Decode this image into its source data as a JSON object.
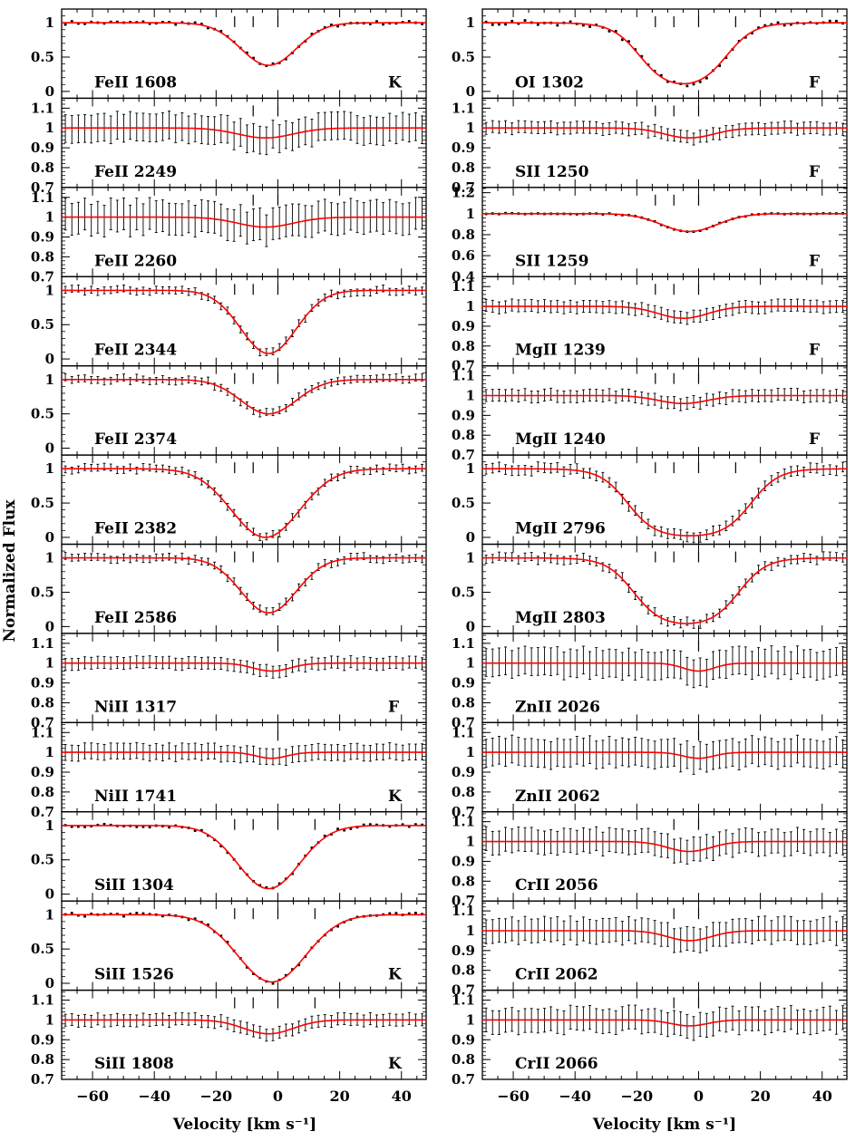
{
  "figure": {
    "ylabel": "Normalized Flux",
    "xlabel": "Velocity [km s⁻¹]"
  },
  "chart_data": {
    "type": "line",
    "description": "Multi-panel absorption line velocity profiles (data points with error bars and red model fit)",
    "xlim": [
      -70,
      48
    ],
    "x_ticks": [
      -60,
      -40,
      -20,
      0,
      20,
      40
    ],
    "xlabel": "Velocity [km s⁻¹]",
    "ylabel": "Normalized Flux",
    "fit_color": "#ff0000",
    "data_color": "#000000",
    "columns": [
      {
        "panels": [
          {
            "ion": "FeII 1608",
            "flag": "K",
            "ylim": [
              -0.1,
              1.2
            ],
            "yticks": [
              "1",
              "0.5",
              "0"
            ],
            "ytick_values": [
              1,
              0.5,
              0
            ],
            "depth": 0.62,
            "center": -3,
            "width": 9,
            "edge_left": -32,
            "edge_right": 10,
            "noise": 0.02,
            "errorbars": false,
            "markers": [
              -14,
              -8,
              0
            ]
          },
          {
            "ion": "FeII 2249",
            "flag": "",
            "ylim": [
              0.7,
              1.15
            ],
            "yticks": [
              "1.1",
              "1",
              "0.9",
              "0.8",
              "0.7"
            ],
            "ytick_values": [
              1.1,
              1,
              0.9,
              0.8,
              0.7
            ],
            "depth": 0.05,
            "center": -4,
            "width": 9,
            "noise": 0.0,
            "errorbars": true,
            "err": 0.07,
            "markers": [
              -8,
              0
            ]
          },
          {
            "ion": "FeII 2260",
            "flag": "",
            "ylim": [
              0.7,
              1.15
            ],
            "yticks": [
              "1.1",
              "1",
              "0.9",
              "0.8",
              "0.7"
            ],
            "ytick_values": [
              1.1,
              1,
              0.9,
              0.8,
              0.7
            ],
            "depth": 0.05,
            "center": -4,
            "width": 9,
            "noise": 0.0,
            "errorbars": true,
            "err": 0.08,
            "markers": [
              -8,
              0
            ]
          },
          {
            "ion": "FeII 2344",
            "flag": "",
            "ylim": [
              -0.1,
              1.2
            ],
            "yticks": [
              "1",
              "0.5",
              "0"
            ],
            "ytick_values": [
              1,
              0.5,
              0
            ],
            "depth": 0.92,
            "center": -3,
            "width": 9,
            "noise": 0.02,
            "errorbars": true,
            "err": 0.05,
            "markers": [
              -14,
              -8,
              0
            ]
          },
          {
            "ion": "FeII 2374",
            "flag": "",
            "ylim": [
              -0.1,
              1.2
            ],
            "yticks": [
              "1",
              "0.5",
              "0"
            ],
            "ytick_values": [
              1,
              0.5,
              0
            ],
            "depth": 0.5,
            "center": -3,
            "width": 9,
            "noise": 0.02,
            "errorbars": true,
            "err": 0.05,
            "markers": [
              -14,
              -8,
              0
            ]
          },
          {
            "ion": "FeII 2382",
            "flag": "",
            "ylim": [
              -0.1,
              1.2
            ],
            "yticks": [
              "1",
              "0.5",
              "0"
            ],
            "ytick_values": [
              1,
              0.5,
              0
            ],
            "depth": 1.0,
            "center": -4,
            "width": 11,
            "noise": 0.02,
            "errorbars": true,
            "err": 0.05,
            "markers": [
              -14,
              -8,
              0
            ]
          },
          {
            "ion": "FeII 2586",
            "flag": "",
            "ylim": [
              -0.1,
              1.2
            ],
            "yticks": [
              "1",
              "0.5",
              "0"
            ],
            "ytick_values": [
              1,
              0.5,
              0
            ],
            "depth": 0.8,
            "center": -3,
            "width": 9,
            "noise": 0.02,
            "errorbars": true,
            "err": 0.05,
            "markers": [
              -14,
              -8,
              0
            ]
          },
          {
            "ion": "NiII 1317",
            "flag": "F",
            "ylim": [
              0.7,
              1.15
            ],
            "yticks": [
              "1.1",
              "1",
              "0.9",
              "0.8",
              "0.7"
            ],
            "ytick_values": [
              1.1,
              1,
              0.9,
              0.8,
              0.7
            ],
            "depth": 0.04,
            "center": -2,
            "width": 6,
            "noise": 0.0,
            "errorbars": true,
            "err": 0.03,
            "markers": [
              0
            ]
          },
          {
            "ion": "NiII 1741",
            "flag": "K",
            "ylim": [
              0.7,
              1.15
            ],
            "yticks": [
              "1.1",
              "1",
              "0.9",
              "0.8",
              "0.7"
            ],
            "ytick_values": [
              1.1,
              1,
              0.9,
              0.8,
              0.7
            ],
            "depth": 0.03,
            "center": -2,
            "width": 5,
            "noise": 0.0,
            "errorbars": true,
            "err": 0.04,
            "markers": [
              0
            ]
          },
          {
            "ion": "SiII 1304",
            "flag": "",
            "ylim": [
              -0.1,
              1.2
            ],
            "yticks": [
              "1",
              "0.5",
              "0"
            ],
            "ytick_values": [
              1,
              0.5,
              0
            ],
            "depth": 0.92,
            "center": -3,
            "width": 10,
            "noise": 0.02,
            "errorbars": false,
            "markers": [
              -14,
              -8,
              0,
              12
            ]
          },
          {
            "ion": "SiII 1526",
            "flag": "K",
            "ylim": [
              -0.1,
              1.2
            ],
            "yticks": [
              "1",
              "0.5",
              "0"
            ],
            "ytick_values": [
              1,
              0.5,
              0
            ],
            "depth": 0.98,
            "center": -2,
            "width": 11,
            "noise": 0.02,
            "errorbars": false,
            "markers": [
              -14,
              -8,
              0,
              12
            ]
          },
          {
            "ion": "SiII 1808",
            "flag": "K",
            "ylim": [
              0.7,
              1.15
            ],
            "yticks": [
              "1.1",
              "1",
              "0.9",
              "0.8",
              "0.7"
            ],
            "ytick_values": [
              1.1,
              1,
              0.9,
              0.8,
              0.7
            ],
            "depth": 0.07,
            "center": -3,
            "width": 8,
            "noise": 0.0,
            "errorbars": true,
            "err": 0.03,
            "markers": [
              -14,
              -8,
              0,
              12
            ]
          }
        ]
      },
      {
        "panels": [
          {
            "ion": "OI 1302",
            "flag": "F",
            "ylim": [
              -0.1,
              1.2
            ],
            "yticks": [
              "1",
              "0.5",
              "0"
            ],
            "ytick_values": [
              1,
              0.5,
              0
            ],
            "depth": 0.97,
            "center": -5,
            "width": 14,
            "noise": 0.03,
            "errorbars": false,
            "markers": [
              -14,
              -8,
              0,
              12
            ],
            "saturated": true
          },
          {
            "ion": "SII 1250",
            "flag": "F",
            "ylim": [
              0.7,
              1.15
            ],
            "yticks": [
              "1.1",
              "1",
              "0.9",
              "0.8",
              "0.7"
            ],
            "ytick_values": [
              1.1,
              1,
              0.9,
              0.8,
              0.7
            ],
            "depth": 0.05,
            "center": -3,
            "width": 8,
            "noise": 0.0,
            "errorbars": true,
            "err": 0.03,
            "markers": [
              -14,
              -8,
              0
            ]
          },
          {
            "ion": "SII 1259",
            "flag": "F",
            "ylim": [
              0.4,
              1.25
            ],
            "yticks": [
              "1.2",
              "1",
              "0.8",
              "0.6",
              "0.4"
            ],
            "ytick_values": [
              1.2,
              1,
              0.8,
              0.6,
              0.4
            ],
            "depth": 0.17,
            "center": -3,
            "width": 9,
            "noise": 0.0,
            "errorbars": false,
            "markers": [
              -14,
              -8,
              0
            ]
          },
          {
            "ion": "MgII 1239",
            "flag": "F",
            "ylim": [
              0.7,
              1.15
            ],
            "yticks": [
              "1.1",
              "1",
              "0.9",
              "0.8",
              "0.7"
            ],
            "ytick_values": [
              1.1,
              1,
              0.9,
              0.8,
              0.7
            ],
            "depth": 0.06,
            "center": -5,
            "width": 8,
            "noise": 0.0,
            "errorbars": true,
            "err": 0.03,
            "markers": [
              -14,
              -8,
              0
            ]
          },
          {
            "ion": "MgII 1240",
            "flag": "F",
            "ylim": [
              0.7,
              1.15
            ],
            "yticks": [
              "1.1",
              "1",
              "0.9",
              "0.8",
              "0.7"
            ],
            "ytick_values": [
              1.1,
              1,
              0.9,
              0.8,
              0.7
            ],
            "depth": 0.04,
            "center": -5,
            "width": 8,
            "noise": 0.0,
            "errorbars": true,
            "err": 0.03,
            "markers": [
              -14,
              -8,
              0
            ]
          },
          {
            "ion": "MgII 2796",
            "flag": "",
            "ylim": [
              -0.1,
              1.2
            ],
            "yticks": [
              "1",
              "0.5",
              "0"
            ],
            "ytick_values": [
              1,
              0.5,
              0
            ],
            "depth": 1.0,
            "center": -3,
            "width": 20,
            "noise": 0.02,
            "errorbars": true,
            "err": 0.07,
            "markers": [
              -14,
              -8,
              0,
              12
            ],
            "saturated": true
          },
          {
            "ion": "MgII 2803",
            "flag": "",
            "ylim": [
              -0.1,
              1.2
            ],
            "yticks": [
              "1",
              "0.5",
              "0"
            ],
            "ytick_values": [
              1,
              0.5,
              0
            ],
            "depth": 1.0,
            "center": -4,
            "width": 17,
            "noise": 0.02,
            "errorbars": true,
            "err": 0.06,
            "markers": [
              -14,
              -8,
              0,
              12
            ],
            "saturated": true
          },
          {
            "ion": "ZnII 2026",
            "flag": "",
            "ylim": [
              0.7,
              1.15
            ],
            "yticks": [
              "1.1",
              "1",
              "0.9",
              "0.8",
              "0.7"
            ],
            "ytick_values": [
              1.1,
              1,
              0.9,
              0.8,
              0.7
            ],
            "depth": 0.04,
            "center": 0,
            "width": 5,
            "noise": 0.0,
            "errorbars": true,
            "err": 0.07,
            "markers": [
              0
            ]
          },
          {
            "ion": "ZnII 2062",
            "flag": "",
            "ylim": [
              0.7,
              1.15
            ],
            "yticks": [
              "1.1",
              "1",
              "0.9",
              "0.8",
              "0.7"
            ],
            "ytick_values": [
              1.1,
              1,
              0.9,
              0.8,
              0.7
            ],
            "depth": 0.03,
            "center": 0,
            "width": 5,
            "noise": 0.0,
            "errorbars": true,
            "err": 0.07,
            "markers": [
              0
            ]
          },
          {
            "ion": "CrII 2056",
            "flag": "",
            "ylim": [
              0.7,
              1.15
            ],
            "yticks": [
              "1.1",
              "1",
              "0.9",
              "0.8",
              "0.7"
            ],
            "ytick_values": [
              1.1,
              1,
              0.9,
              0.8,
              0.7
            ],
            "depth": 0.05,
            "center": -3,
            "width": 7,
            "noise": 0.0,
            "errorbars": true,
            "err": 0.06,
            "markers": [
              -8,
              0
            ]
          },
          {
            "ion": "CrII 2062",
            "flag": "",
            "ylim": [
              0.7,
              1.15
            ],
            "yticks": [
              "1.1",
              "1",
              "0.9",
              "0.8",
              "0.7"
            ],
            "ytick_values": [
              1.1,
              1,
              0.9,
              0.8,
              0.7
            ],
            "depth": 0.05,
            "center": -3,
            "width": 7,
            "noise": 0.0,
            "errorbars": true,
            "err": 0.06,
            "markers": [
              -8,
              0
            ]
          },
          {
            "ion": "CrII 2066",
            "flag": "",
            "ylim": [
              0.7,
              1.15
            ],
            "yticks": [
              "1.1",
              "1",
              "0.9",
              "0.8",
              "0.7"
            ],
            "ytick_values": [
              1.1,
              1,
              0.9,
              0.8,
              0.7
            ],
            "depth": 0.03,
            "center": -3,
            "width": 6,
            "noise": 0.0,
            "errorbars": true,
            "err": 0.06,
            "markers": [
              -8,
              0
            ]
          }
        ]
      }
    ]
  }
}
